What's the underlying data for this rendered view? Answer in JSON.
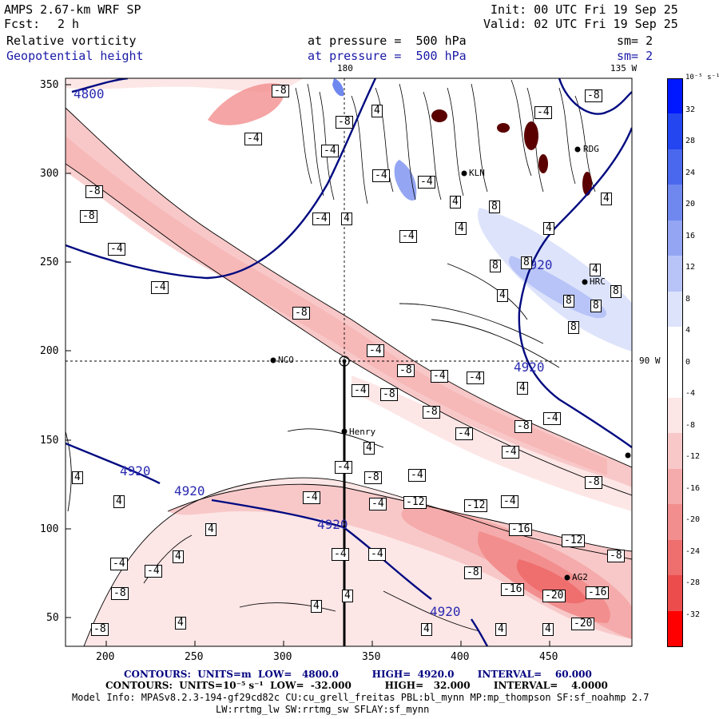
{
  "header": {
    "model": "AMPS 2.67-km WRF SP",
    "fcst_label": "Fcst:",
    "fcst_value": "2 h",
    "init": "Init: 00 UTC Fri 19 Sep 25",
    "valid": "Valid: 02 UTC Fri 19 Sep 25",
    "field1_name": "Relative vorticity",
    "field1_level": "at pressure =  500 hPa",
    "field1_sm": "sm= 2",
    "field2_name": "Geopotential height",
    "field2_level": "at pressure =  500 hPa",
    "field2_sm": "sm= 2"
  },
  "map": {
    "lon_top_180": "180",
    "lon_top_135": "135 W",
    "lon_right_90": "90 W",
    "x_ticks": [
      "200",
      "250",
      "300",
      "350",
      "400",
      "450"
    ],
    "y_ticks": [
      "350",
      "300",
      "250",
      "200",
      "150",
      "100",
      "50"
    ],
    "stations": [
      {
        "name": "NCO"
      },
      {
        "name": "Henry"
      },
      {
        "name": "KLN"
      },
      {
        "name": "RDG"
      },
      {
        "name": "HRC"
      },
      {
        "name": "AG2"
      }
    ],
    "height_labels": [
      "4800",
      "4920",
      "4920",
      "4920",
      "4920",
      "4920",
      "4920"
    ],
    "vort_labels": [
      "-4",
      "-8",
      "4",
      "8",
      "-12",
      "-16",
      "-20"
    ]
  },
  "colorbar": {
    "units": "10⁻⁵ s⁻¹",
    "labels": [
      "32",
      "28",
      "24",
      "20",
      "16",
      "12",
      "8",
      "4",
      "0",
      "-4",
      "-8",
      "-12",
      "-16",
      "-20",
      "-24",
      "-28",
      "-32"
    ],
    "colors": {
      "pos": [
        "#0018ff",
        "#2446f0",
        "#4a68ee",
        "#6f88f0",
        "#94a6f3",
        "#b8c4f7",
        "#dde3fb",
        "#ffffff"
      ],
      "neg": [
        "#ffffff",
        "#fde6e6",
        "#f8c8c8",
        "#f5abab",
        "#f28e8e",
        "#ef6e6e",
        "#ec4c4c",
        "#ff0000"
      ]
    }
  },
  "footer": {
    "contours1": "CONTOURS:  UNITS=m  LOW=   4800.0          HIGH=  4920.0       INTERVAL=    60.000",
    "contours2": "CONTOURS:  UNITS=10⁻⁵ s⁻¹  LOW=  -32.000          HIGH=   32.000       INTERVAL=    4.0000",
    "model_info": "Model Info: MPASv8.2.3-194-gf29cd82c CU:cu_grell_freitas PBL:bl_mynn MP:mp_thompson SF:sf_noahmp 2.7",
    "model_info2": "LW:rrtmg_lw SW:rrtmg_sw SFLAY:sf_mynn"
  }
}
